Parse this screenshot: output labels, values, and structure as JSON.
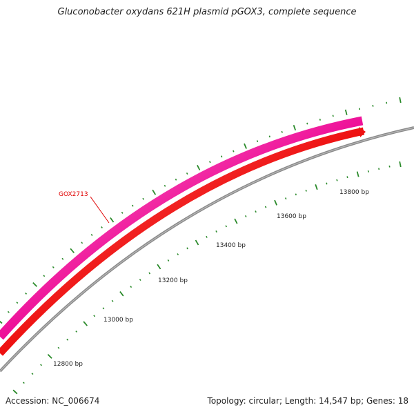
{
  "title": "Gluconobacter oxydans 621H plasmid pGOX3, complete sequence",
  "footer": {
    "accession": "Accession: NC_006674",
    "summary": "Topology: circular; Length: 14,547 bp; Genes: 18"
  },
  "gene_label": {
    "text": "GOX2713",
    "color": "#e00000"
  },
  "tick_labels": [
    "12800 bp",
    "13000 bp",
    "13200 bp",
    "13400 bp",
    "13600 bp",
    "13800 bp"
  ],
  "colors": {
    "outer_feature": "#ee1199",
    "inner_feature": "#ee1111",
    "backbone": "#808080",
    "ticks": "#2a8a2a"
  }
}
